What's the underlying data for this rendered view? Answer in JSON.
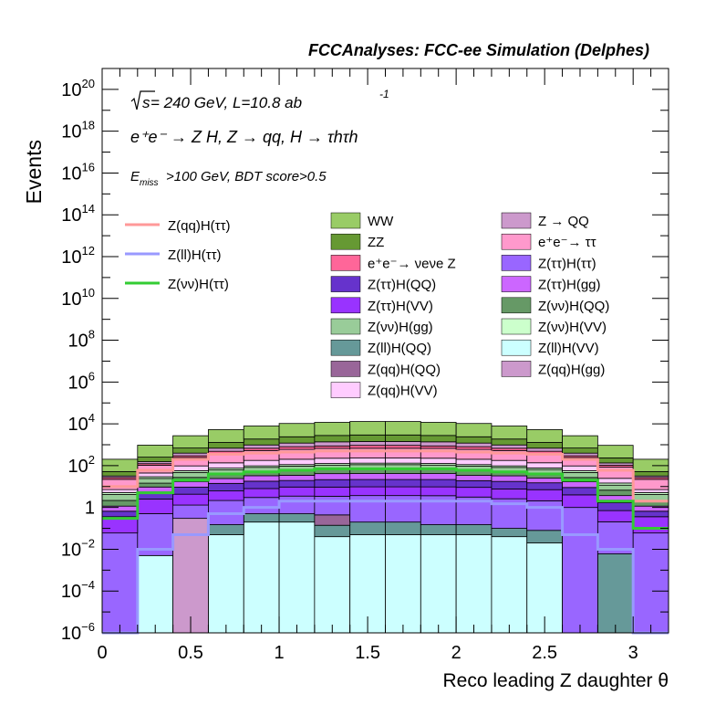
{
  "chart_data": {
    "type": "bar",
    "title": "FCCAnalyses: FCC-ee Simulation (Delphes)",
    "xlabel": "Reco leading Z daughter θ",
    "ylabel": "Events",
    "xlim": [
      0,
      3.2
    ],
    "ylim": [
      1e-06,
      1e+21
    ],
    "yscale": "log",
    "x_ticks": [
      "0",
      "0.5",
      "1",
      "1.5",
      "2",
      "2.5",
      "3"
    ],
    "y_ticks": [
      {
        "base": "10",
        "exp": "−6"
      },
      {
        "base": "10",
        "exp": "−4"
      },
      {
        "base": "10",
        "exp": "−2"
      },
      {
        "base": "1",
        "exp": ""
      },
      {
        "base": "10",
        "exp": "2"
      },
      {
        "base": "10",
        "exp": "4"
      },
      {
        "base": "10",
        "exp": "6"
      },
      {
        "base": "10",
        "exp": "8"
      },
      {
        "base": "10",
        "exp": "10"
      },
      {
        "base": "10",
        "exp": "12"
      },
      {
        "base": "10",
        "exp": "14"
      },
      {
        "base": "10",
        "exp": "16"
      },
      {
        "base": "10",
        "exp": "18"
      },
      {
        "base": "10",
        "exp": "20"
      }
    ],
    "bin_edges": [
      0,
      0.2,
      0.4,
      0.6,
      0.8,
      1.0,
      1.2,
      1.4,
      1.6,
      1.8,
      2.0,
      2.2,
      2.4,
      2.6,
      2.8,
      3.0,
      3.2
    ],
    "annotations": {
      "energy_prefix": "s",
      "energy_rest": " = 240 GeV, L=10.8 ab",
      "energy_sup": "-1",
      "process": "e⁺e⁻ → Z H, Z → qq, H → τhτh",
      "cuts_E": "E",
      "cuts_sub": "miss",
      "cuts_rest": ">100 GeV, BDT score>0.5"
    },
    "stack": [
      {
        "name": "Z(ll)H(VV)",
        "color": "#ccffff",
        "values": [
          0,
          0.005,
          0,
          0.05,
          0.2,
          0.2,
          0.04,
          0.05,
          0.05,
          0.05,
          0.05,
          0.04,
          0.02,
          0,
          0,
          0
        ]
      },
      {
        "name": "Z(qq)H(gg)",
        "color": "#cc99cc",
        "values": [
          0,
          0,
          0.3,
          0,
          0,
          0,
          0,
          0,
          0,
          0,
          0,
          0,
          0,
          0,
          0,
          0
        ]
      },
      {
        "name": "Z(ll)H(QQ)",
        "color": "#669999",
        "values": [
          0,
          0,
          0,
          0.1,
          0.3,
          0.3,
          0.1,
          0.15,
          0.15,
          0.1,
          0.1,
          0.06,
          0.06,
          0,
          0.006,
          0
        ]
      },
      {
        "name": "Z(qq)H(QQ)",
        "color": "#996699",
        "values": [
          0,
          0,
          0,
          0,
          0,
          0,
          0.3,
          0,
          0,
          0,
          0,
          0,
          0,
          0,
          0,
          0
        ]
      },
      {
        "name": "Z(ττ)H(ττ)",
        "color": "#9966ff",
        "values": [
          0.06,
          0.5,
          1,
          2,
          2.5,
          3,
          3,
          3.5,
          3.5,
          3.5,
          3,
          2.5,
          2,
          1,
          0.2,
          0.06
        ]
      },
      {
        "name": "Z(ττ)H(VV)",
        "color": "#9933ff",
        "values": [
          0.3,
          2,
          3,
          4,
          5,
          6,
          6,
          6,
          6,
          6,
          6,
          5,
          5,
          3,
          0.5,
          0.3
        ]
      },
      {
        "name": "Z(ττ)H(QQ)",
        "color": "#6633cc",
        "values": [
          0.3,
          3,
          5,
          8,
          10,
          10,
          12,
          12,
          12,
          12,
          10,
          10,
          8,
          5,
          1,
          0.3
        ]
      },
      {
        "name": "Z(ττ)H(gg)",
        "color": "#cc66ff",
        "values": [
          0.5,
          4,
          8,
          10,
          15,
          15,
          20,
          20,
          20,
          20,
          15,
          15,
          10,
          8,
          2,
          0.5
        ]
      },
      {
        "name": "Z(νν)H(QQ)",
        "color": "#669966",
        "values": [
          1,
          5,
          10,
          15,
          20,
          25,
          25,
          30,
          30,
          25,
          25,
          20,
          15,
          10,
          3,
          1
        ]
      },
      {
        "name": "Z(νν)H(gg)",
        "color": "#99cc99",
        "values": [
          2,
          10,
          20,
          25,
          30,
          35,
          40,
          40,
          40,
          40,
          35,
          30,
          25,
          20,
          5,
          2
        ]
      },
      {
        "name": "Z(νν)H(VV)",
        "color": "#ccffcc",
        "values": [
          1,
          5,
          10,
          12,
          15,
          18,
          20,
          20,
          20,
          20,
          18,
          15,
          12,
          10,
          3,
          1
        ]
      },
      {
        "name": "Z(qq)H(VV)",
        "color": "#ffccff",
        "values": [
          2,
          15,
          40,
          60,
          80,
          90,
          100,
          100,
          100,
          100,
          90,
          80,
          60,
          40,
          10,
          2
        ]
      },
      {
        "name": "e⁺e⁻→ ττ",
        "color": "#ff99cc",
        "values": [
          15,
          60,
          150,
          250,
          350,
          400,
          450,
          450,
          450,
          450,
          400,
          350,
          250,
          150,
          60,
          15
        ]
      },
      {
        "name": "e⁺e⁻→ νeνe Z",
        "color": "#ff6699",
        "values": [
          5,
          20,
          50,
          100,
          150,
          200,
          200,
          250,
          250,
          200,
          200,
          150,
          100,
          50,
          20,
          5
        ]
      },
      {
        "name": "Z → QQ",
        "color": "#cc99cc",
        "values": [
          5,
          30,
          100,
          200,
          300,
          400,
          500,
          500,
          500,
          500,
          400,
          300,
          200,
          100,
          30,
          5
        ]
      },
      {
        "name": "ZZ",
        "color": "#669933",
        "values": [
          20,
          100,
          300,
          600,
          900,
          1200,
          1400,
          1500,
          1500,
          1400,
          1200,
          900,
          600,
          300,
          100,
          20
        ]
      },
      {
        "name": "WW",
        "color": "#99cc66",
        "values": [
          150,
          700,
          2000,
          4000,
          6000,
          8000,
          9000,
          10000,
          10000,
          9000,
          8000,
          6000,
          4000,
          2000,
          700,
          150
        ]
      }
    ],
    "lines": [
      {
        "name": "Z(qq)H(ττ)",
        "color": "#ff9999",
        "values": [
          10,
          60,
          200,
          350,
          400,
          450,
          500,
          500,
          500,
          500,
          450,
          400,
          350,
          200,
          60,
          2
        ]
      },
      {
        "name": "Z(ll)H(ττ)",
        "color": "#9999ff",
        "values": [
          1e-07,
          0.01,
          0.05,
          0.5,
          1,
          2,
          2,
          2,
          2,
          2,
          2,
          1.5,
          1,
          0.05,
          0.01,
          1e-07
        ]
      },
      {
        "name": "Z(νν)H(ττ)",
        "color": "#33cc33",
        "values": [
          0.3,
          5,
          20,
          40,
          50,
          60,
          70,
          70,
          70,
          70,
          60,
          50,
          40,
          20,
          2,
          0.1
        ]
      }
    ],
    "legend_lines": [
      {
        "label": "Z(qq)H(ττ)",
        "color": "#ff9999"
      },
      {
        "label": "Z(ll)H(ττ)",
        "color": "#9999ff"
      },
      {
        "label": "Z(νν)H(ττ)",
        "color": "#33cc33"
      }
    ],
    "legend_stack_col1": [
      {
        "label": "WW",
        "color": "#99cc66"
      },
      {
        "label": "ZZ",
        "color": "#669933"
      },
      {
        "label": "e⁺e⁻→ νeνe Z",
        "color": "#ff6699"
      },
      {
        "label": "Z(ττ)H(QQ)",
        "color": "#6633cc"
      },
      {
        "label": "Z(ττ)H(VV)",
        "color": "#9933ff"
      },
      {
        "label": "Z(νν)H(gg)",
        "color": "#99cc99"
      },
      {
        "label": "Z(ll)H(QQ)",
        "color": "#669999"
      },
      {
        "label": "Z(qq)H(QQ)",
        "color": "#996699"
      },
      {
        "label": "Z(qq)H(VV)",
        "color": "#ffccff"
      }
    ],
    "legend_stack_col2": [
      {
        "label": "Z → QQ",
        "color": "#cc99cc"
      },
      {
        "label": "e⁺e⁻→ ττ",
        "color": "#ff99cc"
      },
      {
        "label": "Z(ττ)H(ττ)",
        "color": "#9966ff"
      },
      {
        "label": "Z(ττ)H(gg)",
        "color": "#cc66ff"
      },
      {
        "label": "Z(νν)H(QQ)",
        "color": "#669966"
      },
      {
        "label": "Z(νν)H(VV)",
        "color": "#ccffcc"
      },
      {
        "label": "Z(ll)H(VV)",
        "color": "#ccffff"
      },
      {
        "label": "Z(qq)H(gg)",
        "color": "#cc99cc"
      }
    ]
  }
}
